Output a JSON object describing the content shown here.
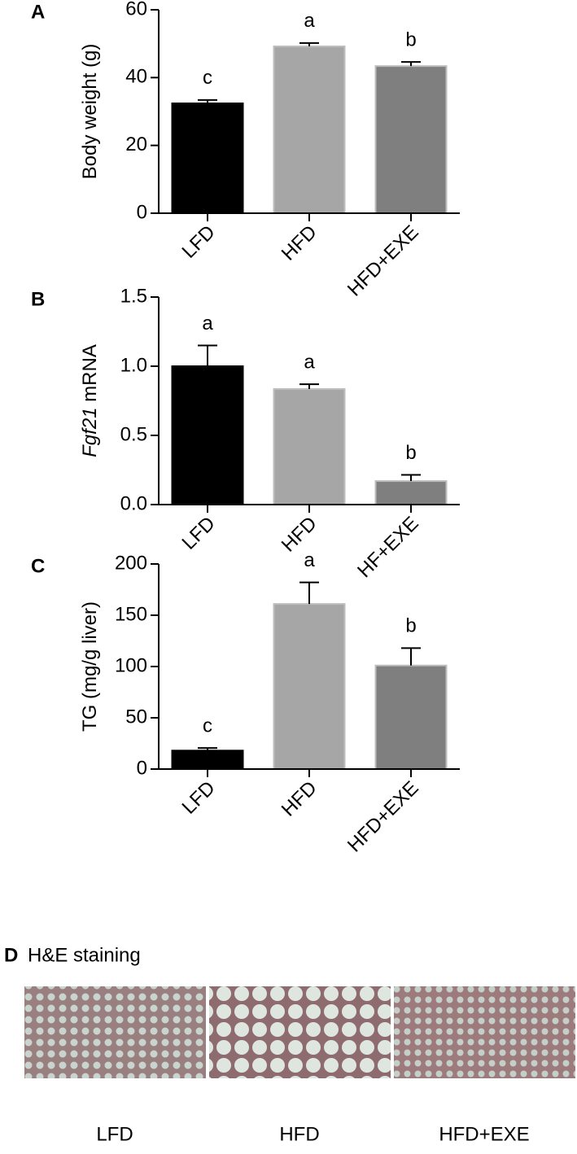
{
  "chart_data": [
    {
      "type": "bar",
      "panel": "A",
      "ylabel_parts": [
        {
          "text": "Body weight (g)",
          "italic": false
        }
      ],
      "categories": [
        "LFD",
        "HFD",
        "HFD+EXE"
      ],
      "values": [
        32.4,
        49.2,
        43.4
      ],
      "errors": [
        1.0,
        1.0,
        1.2
      ],
      "annotations": [
        "c",
        "a",
        "b"
      ],
      "colors": [
        "#000000",
        "#a6a6a6",
        "#7f7f7f"
      ],
      "ylim": [
        0,
        60
      ],
      "yticks": [
        0,
        20,
        40,
        60
      ]
    },
    {
      "type": "bar",
      "panel": "B",
      "ylabel_parts": [
        {
          "text": "Fgf21",
          "italic": true
        },
        {
          "text": " mRNA",
          "italic": false
        }
      ],
      "categories": [
        "LFD",
        "HFD",
        "HF+EXE"
      ],
      "values": [
        1.0,
        0.835,
        0.17
      ],
      "errors": [
        0.15,
        0.035,
        0.045
      ],
      "annotations": [
        "a",
        "a",
        "b"
      ],
      "colors": [
        "#000000",
        "#a6a6a6",
        "#7f7f7f"
      ],
      "ylim": [
        0,
        1.5
      ],
      "yticks": [
        {
          "value": 0,
          "label": "0.0"
        },
        0.5,
        {
          "value": 1,
          "label": "1.0"
        },
        1.5
      ]
    },
    {
      "type": "bar",
      "panel": "C",
      "ylabel_parts": [
        {
          "text": "TG (mg/g liver)",
          "italic": false
        }
      ],
      "categories": [
        "LFD",
        "HFD",
        "HFD+EXE"
      ],
      "values": [
        18,
        161,
        101
      ],
      "errors": [
        2.5,
        21,
        17
      ],
      "annotations": [
        "c",
        "a",
        "b"
      ],
      "colors": [
        "#000000",
        "#a6a6a6",
        "#7f7f7f"
      ],
      "ylim": [
        0,
        200
      ],
      "yticks": [
        0,
        50,
        100,
        150,
        200
      ]
    }
  ],
  "panel_d": {
    "label": "D",
    "title": "H&E staining",
    "images": [
      "LFD",
      "HFD",
      "HFD+EXE"
    ]
  }
}
